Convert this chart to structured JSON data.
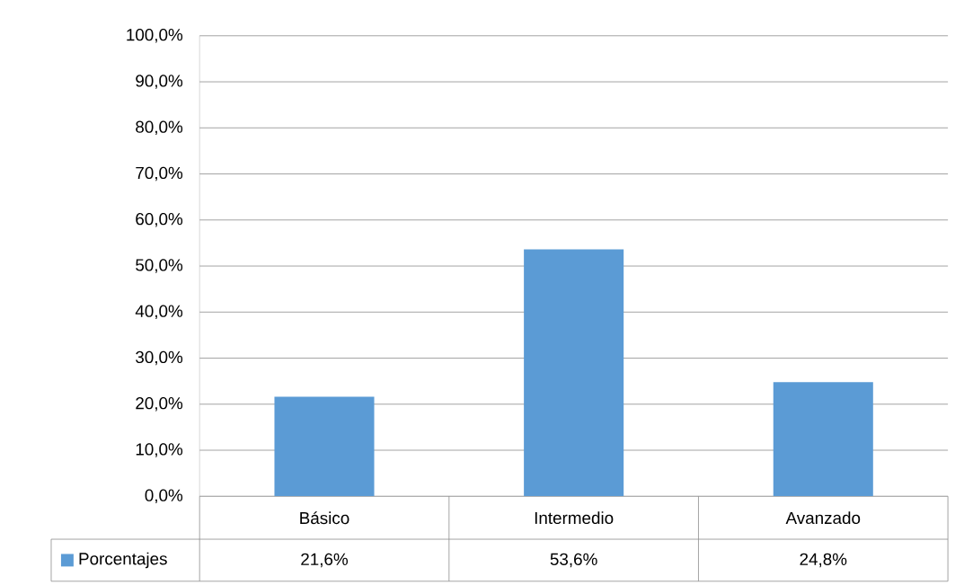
{
  "chart_data": {
    "type": "bar",
    "categories": [
      "Básico",
      "Intermedio",
      "Avanzado"
    ],
    "series": [
      {
        "name": "Porcentajes",
        "color": "#5b9bd5",
        "values": [
          21.6,
          53.6,
          24.8
        ],
        "value_labels": [
          "21,6%",
          "53,6%",
          "24,8%"
        ]
      }
    ],
    "ylim": [
      0,
      100
    ],
    "yticks": [
      {
        "value": 0,
        "label": "0,0%"
      },
      {
        "value": 10,
        "label": "10,0%"
      },
      {
        "value": 20,
        "label": "20,0%"
      },
      {
        "value": 30,
        "label": "30,0%"
      },
      {
        "value": 40,
        "label": "40,0%"
      },
      {
        "value": 50,
        "label": "50,0%"
      },
      {
        "value": 60,
        "label": "60,0%"
      },
      {
        "value": 70,
        "label": "70,0%"
      },
      {
        "value": 80,
        "label": "80,0%"
      },
      {
        "value": 90,
        "label": "90,0%"
      },
      {
        "value": 100,
        "label": "100,0%"
      }
    ],
    "grid": "y",
    "legend": "bottom"
  }
}
